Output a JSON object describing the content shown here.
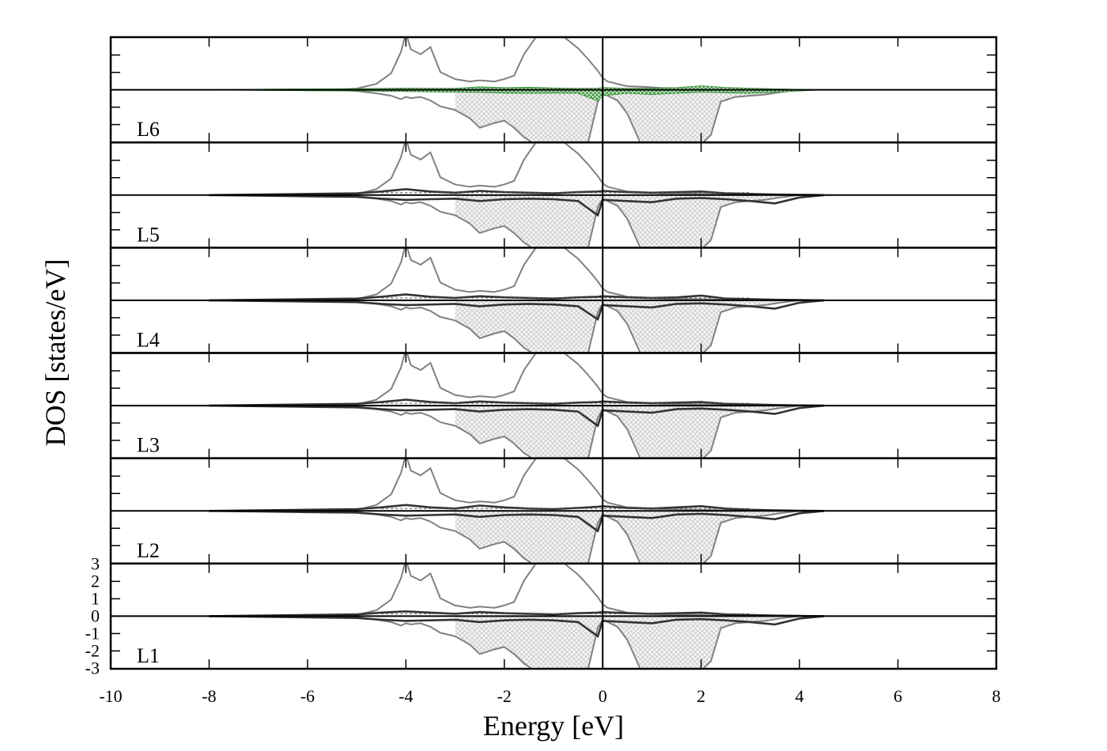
{
  "chart_data": {
    "type": "line",
    "xlabel": "Energy [eV]",
    "ylabel": "DOS [states/eV]",
    "xlim": [
      -10,
      8
    ],
    "x_ticks": [
      -10,
      -8,
      -6,
      -4,
      -2,
      0,
      2,
      4,
      6,
      8
    ],
    "x_tick_labels": [
      "-10",
      "-8",
      "-6",
      "-4",
      "-2",
      "0",
      "2",
      "4",
      "6",
      "8"
    ],
    "ylim": [
      -3,
      3
    ],
    "y_ticks": [
      -3,
      -2,
      -1,
      0,
      1,
      2,
      3
    ],
    "y_tick_labels": [
      "-3",
      "-2",
      "-1",
      "0",
      "1",
      "2",
      "3"
    ],
    "fermi_level": 0,
    "grid": false,
    "panels_top_to_bottom": [
      "L6",
      "L5",
      "L4",
      "L3",
      "L2",
      "L1"
    ],
    "background_dos": {
      "x": [
        -5.5,
        -5.0,
        -4.6,
        -4.3,
        -4.1,
        -4.0,
        -3.9,
        -3.7,
        -3.5,
        -3.3,
        -3.0,
        -2.7,
        -2.5,
        -2.2,
        -2.0,
        -1.8,
        -1.6,
        -1.3,
        -1.0,
        -0.8,
        -0.5,
        -0.3,
        -0.1,
        0.0,
        0.1,
        0.3,
        0.5,
        0.8,
        1.2,
        1.6,
        2.0,
        2.2,
        2.4,
        2.7,
        3.0,
        3.3,
        3.6,
        4.0
      ],
      "up": [
        0.0,
        0.1,
        0.5,
        1.4,
        3.2,
        5.0,
        3.4,
        3.0,
        3.6,
        1.5,
        0.9,
        0.7,
        0.8,
        0.7,
        0.9,
        1.2,
        3.0,
        5.0,
        4.8,
        4.5,
        3.5,
        2.6,
        1.6,
        1.0,
        0.7,
        0.5,
        0.3,
        0.25,
        0.15,
        0.12,
        0.1,
        0.08,
        0.06,
        0.05,
        0.03,
        0.02,
        0.01,
        0.0
      ],
      "down": [
        0.0,
        -0.1,
        -0.3,
        -0.5,
        -0.8,
        -0.6,
        -0.7,
        -0.6,
        -0.9,
        -1.4,
        -1.7,
        -2.4,
        -3.2,
        -2.8,
        -2.6,
        -3.2,
        -4.0,
        -4.8,
        -5.0,
        -5.0,
        -4.8,
        -4.5,
        -1.0,
        -0.3,
        -0.5,
        -0.9,
        -2.0,
        -4.8,
        -5.0,
        -5.0,
        -4.6,
        -3.8,
        -1.0,
        -0.6,
        -0.5,
        -0.4,
        -0.2,
        0.0
      ],
      "down_shaded_region": [
        -3.0,
        3.6
      ]
    },
    "series": [
      {
        "panel": "L6",
        "color": "#2e8b2e",
        "x": [
          -10,
          -8,
          -6,
          -5,
          -4,
          -3,
          -2.5,
          -2,
          -1.5,
          -1,
          -0.5,
          -0.1,
          0.0,
          0.5,
          1,
          1.5,
          2,
          2.5,
          3,
          3.5,
          4,
          4.5
        ],
        "up": [
          0,
          0.02,
          0.08,
          0.1,
          0.14,
          0.12,
          0.25,
          0.18,
          0.22,
          0.15,
          0.12,
          0.14,
          0.2,
          0.12,
          0.14,
          0.18,
          0.34,
          0.2,
          0.14,
          0.08,
          0.04,
          0
        ],
        "down": [
          0,
          -0.02,
          -0.08,
          -0.1,
          -0.15,
          -0.2,
          -0.22,
          -0.28,
          -0.3,
          -0.28,
          -0.3,
          -0.95,
          -0.5,
          -0.3,
          -0.4,
          -0.3,
          -0.2,
          -0.25,
          -0.3,
          -0.2,
          -0.1,
          0
        ]
      },
      {
        "panel": "L5",
        "color": "#333333",
        "x": [
          -8,
          -7,
          -6,
          -5,
          -4.5,
          -4,
          -3.5,
          -3,
          -2.5,
          -2,
          -1.5,
          -1,
          -0.5,
          -0.1,
          0.0,
          0.5,
          1,
          1.5,
          2,
          2.5,
          3,
          3.5,
          4,
          4.5
        ],
        "up": [
          0,
          0.05,
          0.1,
          0.15,
          0.3,
          0.5,
          0.3,
          0.2,
          0.35,
          0.25,
          0.2,
          0.15,
          0.25,
          0.3,
          0.35,
          0.25,
          0.2,
          0.25,
          0.3,
          0.15,
          0.1,
          0.05,
          0.02,
          0
        ],
        "down": [
          0,
          -0.05,
          -0.1,
          -0.15,
          -0.3,
          -0.4,
          -0.35,
          -0.3,
          -0.5,
          -0.35,
          -0.3,
          -0.35,
          -0.5,
          -1.7,
          -0.4,
          -0.5,
          -0.6,
          -0.3,
          -0.25,
          -0.35,
          -0.5,
          -0.7,
          -0.2,
          0
        ]
      },
      {
        "panel": "L4",
        "color": "#333333",
        "x": [
          -8,
          -7,
          -6,
          -5,
          -4.5,
          -4,
          -3.5,
          -3,
          -2.5,
          -2,
          -1.5,
          -1,
          -0.5,
          -0.1,
          0.0,
          0.5,
          1,
          1.5,
          2,
          2.5,
          3,
          3.5,
          4,
          4.5
        ],
        "up": [
          0,
          0.05,
          0.1,
          0.15,
          0.3,
          0.5,
          0.3,
          0.2,
          0.35,
          0.25,
          0.2,
          0.15,
          0.25,
          0.3,
          0.35,
          0.25,
          0.2,
          0.25,
          0.4,
          0.15,
          0.1,
          0.05,
          0.02,
          0
        ],
        "down": [
          0,
          -0.05,
          -0.1,
          -0.15,
          -0.3,
          -0.4,
          -0.35,
          -0.3,
          -0.5,
          -0.35,
          -0.3,
          -0.35,
          -0.5,
          -1.6,
          -0.4,
          -0.5,
          -0.6,
          -0.3,
          -0.25,
          -0.35,
          -0.5,
          -0.7,
          -0.2,
          0
        ]
      },
      {
        "panel": "L3",
        "color": "#333333",
        "x": [
          -8,
          -7,
          -6,
          -5,
          -4.5,
          -4,
          -3.5,
          -3,
          -2.5,
          -2,
          -1.5,
          -1,
          -0.5,
          -0.1,
          0.0,
          0.5,
          1,
          1.5,
          2,
          2.5,
          3,
          3.5,
          4,
          4.5
        ],
        "up": [
          0,
          0.05,
          0.1,
          0.15,
          0.3,
          0.5,
          0.3,
          0.2,
          0.35,
          0.25,
          0.2,
          0.15,
          0.25,
          0.3,
          0.35,
          0.25,
          0.2,
          0.25,
          0.3,
          0.15,
          0.1,
          0.05,
          0.02,
          0
        ],
        "down": [
          0,
          -0.05,
          -0.1,
          -0.15,
          -0.3,
          -0.4,
          -0.35,
          -0.3,
          -0.5,
          -0.35,
          -0.3,
          -0.35,
          -0.5,
          -1.7,
          -0.4,
          -0.5,
          -0.6,
          -0.3,
          -0.25,
          -0.35,
          -0.5,
          -0.7,
          -0.2,
          0
        ]
      },
      {
        "panel": "L2",
        "color": "#333333",
        "x": [
          -8,
          -7,
          -6,
          -5,
          -4.5,
          -4,
          -3.5,
          -3,
          -2.5,
          -2,
          -1.5,
          -1,
          -0.5,
          -0.1,
          0.0,
          0.5,
          1,
          1.5,
          2,
          2.5,
          3,
          3.5,
          4,
          4.5
        ],
        "up": [
          0,
          0.05,
          0.1,
          0.15,
          0.3,
          0.5,
          0.3,
          0.2,
          0.45,
          0.3,
          0.2,
          0.15,
          0.25,
          0.35,
          0.4,
          0.25,
          0.2,
          0.3,
          0.4,
          0.2,
          0.1,
          0.05,
          0.02,
          0
        ],
        "down": [
          0,
          -0.05,
          -0.1,
          -0.15,
          -0.3,
          -0.4,
          -0.35,
          -0.3,
          -0.5,
          -0.35,
          -0.3,
          -0.35,
          -0.5,
          -1.7,
          -0.4,
          -0.5,
          -0.6,
          -0.3,
          -0.25,
          -0.35,
          -0.5,
          -0.7,
          -0.2,
          0
        ]
      },
      {
        "panel": "L1",
        "color": "#333333",
        "x": [
          -8,
          -7,
          -6,
          -5,
          -4.5,
          -4,
          -3.5,
          -3,
          -2.5,
          -2,
          -1.5,
          -1,
          -0.5,
          -0.1,
          0.0,
          0.5,
          1,
          1.5,
          2,
          2.5,
          3,
          3.5,
          4,
          4.5
        ],
        "up": [
          0,
          0.05,
          0.1,
          0.15,
          0.3,
          0.4,
          0.3,
          0.2,
          0.35,
          0.25,
          0.2,
          0.15,
          0.25,
          0.3,
          0.35,
          0.25,
          0.2,
          0.25,
          0.3,
          0.15,
          0.1,
          0.05,
          0.02,
          0
        ],
        "down": [
          0,
          -0.05,
          -0.1,
          -0.15,
          -0.3,
          -0.4,
          -0.35,
          -0.3,
          -0.5,
          -0.35,
          -0.3,
          -0.35,
          -0.5,
          -1.7,
          -0.4,
          -0.5,
          -0.6,
          -0.3,
          -0.25,
          -0.35,
          -0.5,
          -0.7,
          -0.2,
          0
        ]
      }
    ]
  }
}
